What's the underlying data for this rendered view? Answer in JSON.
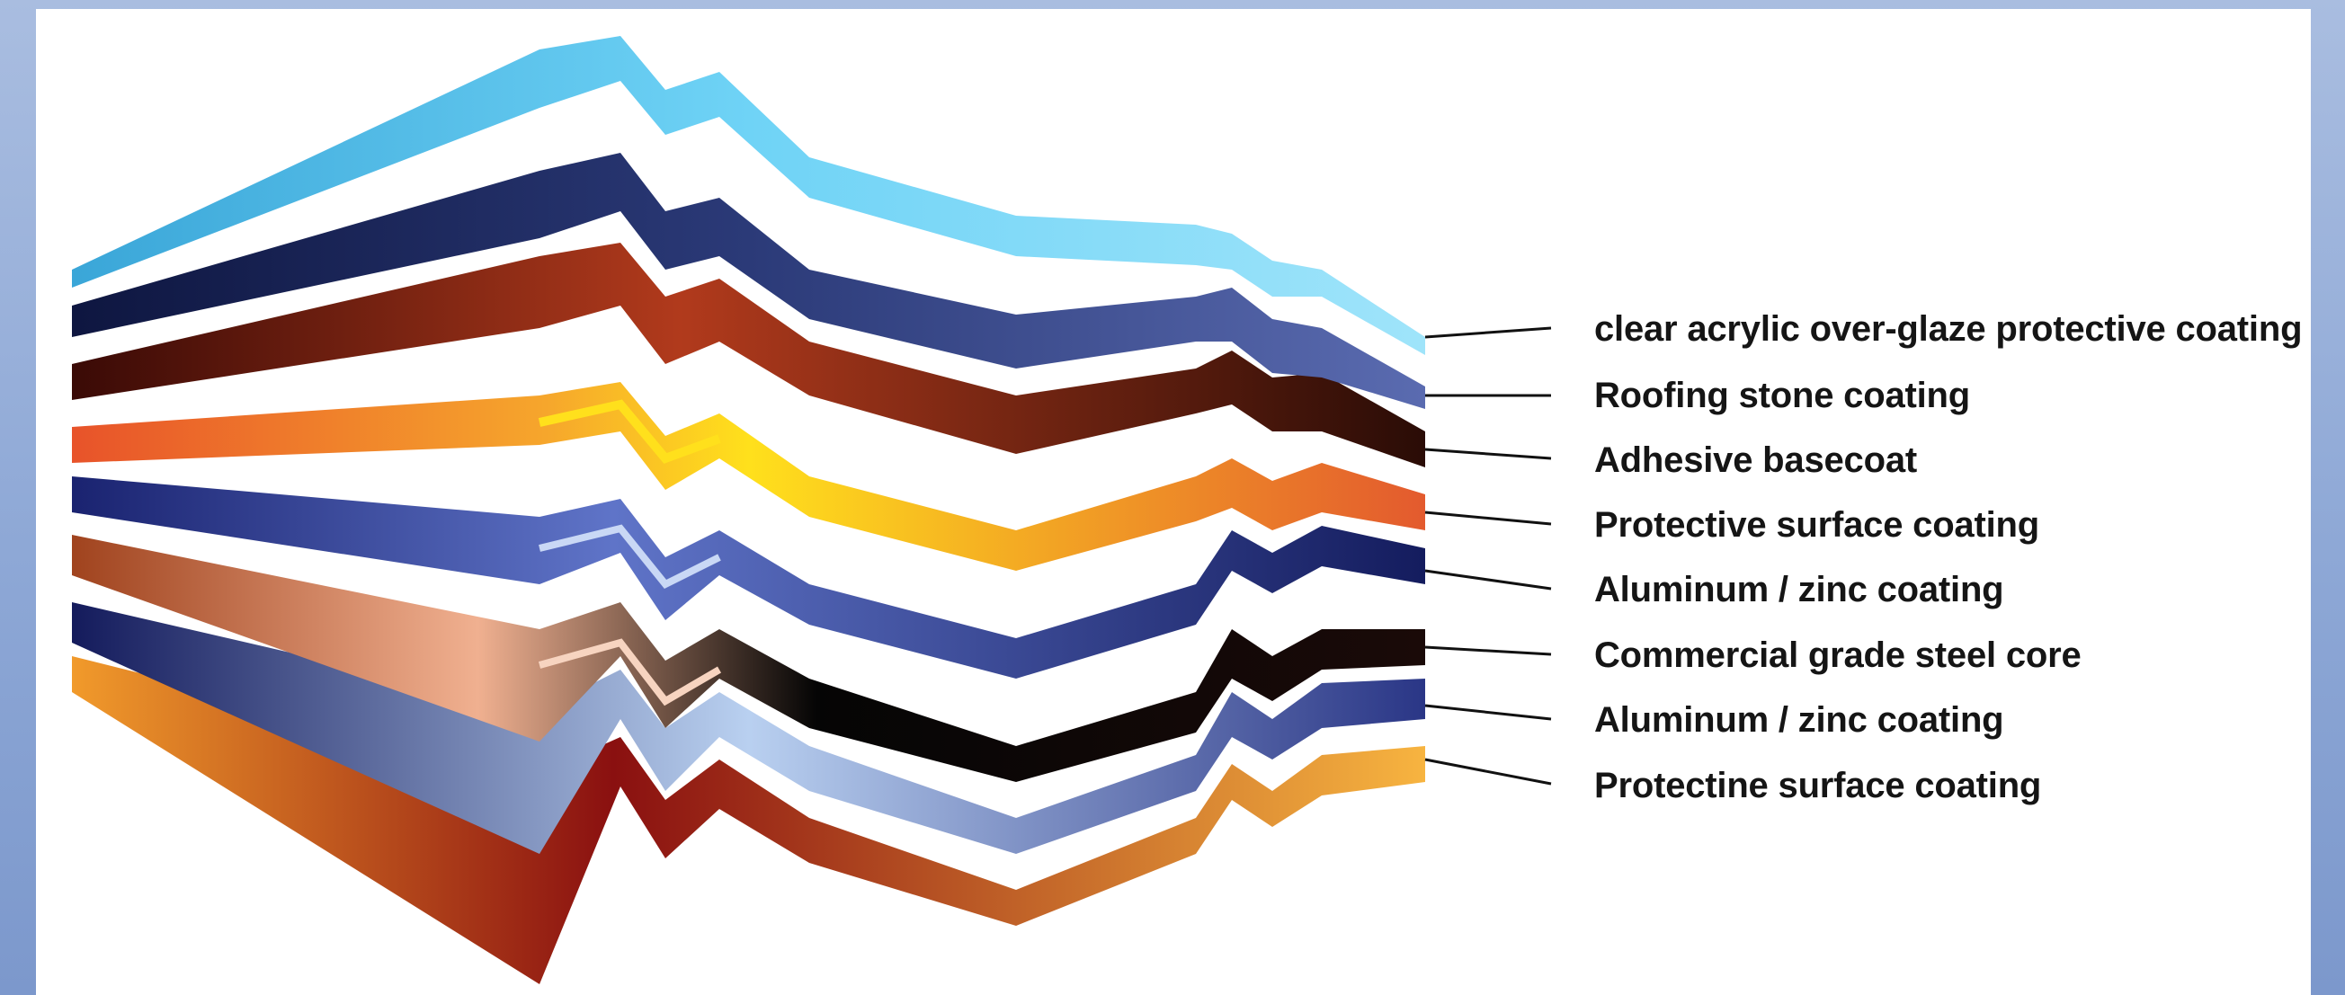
{
  "diagram": {
    "layers": [
      {
        "label": "clear acrylic over-glaze protective coating",
        "color": "#4fc3ef"
      },
      {
        "label": "Roofing stone coating",
        "color": "#1a2250"
      },
      {
        "label": "Adhesive basecoat",
        "color": "#7a1e0c"
      },
      {
        "label": "Protective surface coating",
        "color": "#f07a35"
      },
      {
        "label": "Aluminum / zinc coating",
        "color": "#1f2a7a"
      },
      {
        "label": "Commercial grade steel core",
        "color": "#0a0a0a"
      },
      {
        "label": "Aluminum / zinc coating",
        "color": "#25307f"
      },
      {
        "label": "Protectine surface coating",
        "color": "#c0272d"
      }
    ]
  }
}
